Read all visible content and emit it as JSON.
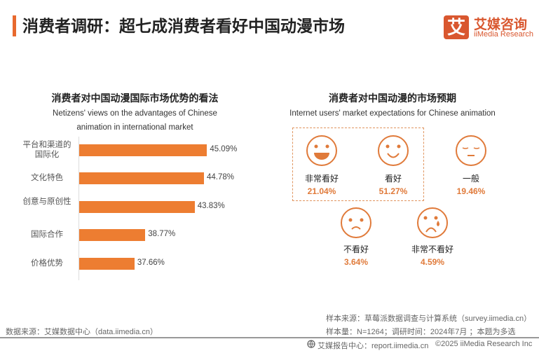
{
  "header": {
    "title": "消费者调研：超七成消费者看好中国动漫市场",
    "logo_mark": "艾",
    "logo_cn": "艾媒咨询",
    "logo_en": "iiMedia Research"
  },
  "chart_data": {
    "type": "bar",
    "orientation": "horizontal",
    "title": "消费者对中国动漫国际市场优势的看法",
    "subtitle": "Netizens' views on the advantages of Chinese animation in international market",
    "categories": [
      "平台和渠道的国际化",
      "文化特色",
      "创意与原创性",
      "国际合作",
      "价格优势"
    ],
    "values": [
      45.09,
      44.78,
      43.83,
      38.77,
      37.66
    ],
    "labels": [
      "45.09%",
      "44.78%",
      "43.83%",
      "38.77%",
      "37.66%"
    ],
    "unit": "%",
    "xlim": [
      32,
      46
    ],
    "grid": false,
    "color": "#ed7d31"
  },
  "expectations": {
    "title": "消费者对中国动漫的市场预期",
    "subtitle": "Internet users' market expectations for Chinese animation",
    "items": [
      {
        "label": "非常看好",
        "value": "21.04%",
        "icon": "big-smile-face"
      },
      {
        "label": "看好",
        "value": "51.27%",
        "icon": "smile-face"
      },
      {
        "label": "一般",
        "value": "19.46%",
        "icon": "neutral-face"
      },
      {
        "label": "不看好",
        "value": "3.64%",
        "icon": "frown-face"
      },
      {
        "label": "非常不看好",
        "value": "4.59%",
        "icon": "crying-face"
      }
    ],
    "accent": "#e07a3a"
  },
  "footer": {
    "data_source": "数据来源：艾媒数据中心（data.iimedia.cn）",
    "sample_source": "样本来源：草莓派数据调查与计算系统（survey.iimedia.cn）",
    "sample_size": "样本量：N=1264；调研时间：2024年7月 ；本题为多选",
    "report_center": "艾媒报告中心：report.iimedia.cn",
    "copyright": "©2025  iiMedia Research  Inc"
  }
}
